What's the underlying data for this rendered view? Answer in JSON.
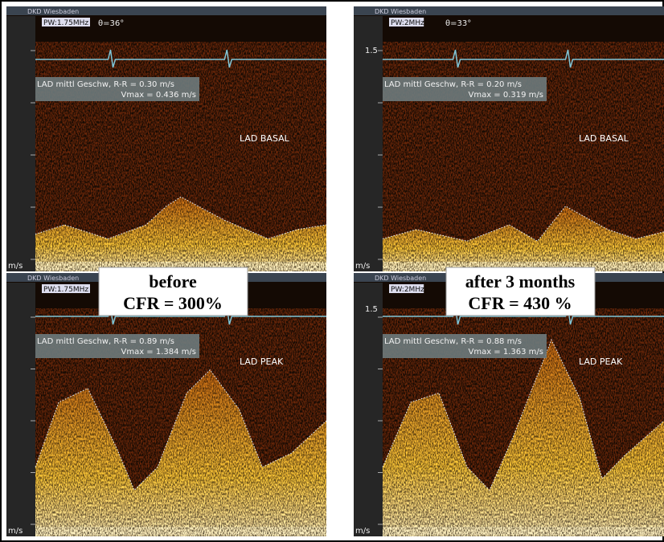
{
  "figure": {
    "panels": [
      {
        "header": "DKD Wiesbaden",
        "probe": "PW:1.75MHz",
        "angle": "θ=36°",
        "measure": "LAD mittl Geschw, R-R = 0.30 m/s",
        "vmax": "Vmax = 0.436 m/s",
        "site": "LAD BASAL",
        "unit": "m/s"
      },
      {
        "header": "DKD Wiesbaden",
        "probe": "PW:2MHz",
        "angle": "θ=33°",
        "scale": "1.5",
        "measure": "LAD mittl Geschw, R-R = 0.20 m/s",
        "vmax": "Vmax = 0.319 m/s",
        "site": "LAD BASAL",
        "unit": "m/s"
      },
      {
        "header": "DKD Wiesbaden",
        "probe": "PW:1.75MHz",
        "measure": "LAD mittl Geschw, R-R = 0.89 m/s",
        "vmax": "Vmax = 1.384 m/s",
        "site": "LAD PEAK",
        "unit": "m/s"
      },
      {
        "header": "DKD Wiesbaden",
        "probe": "PW:2MHz",
        "scale": "1.5",
        "measure": "LAD mittl Geschw, R-R = 0.88 m/s",
        "vmax": "Vmax = 1.363 m/s",
        "site": "LAD PEAK",
        "unit": "m/s"
      }
    ],
    "labels": [
      {
        "line1": "before",
        "line2": "CFR = 300%"
      },
      {
        "line1": "after 3 months",
        "line2": "CFR = 430 %"
      }
    ]
  }
}
